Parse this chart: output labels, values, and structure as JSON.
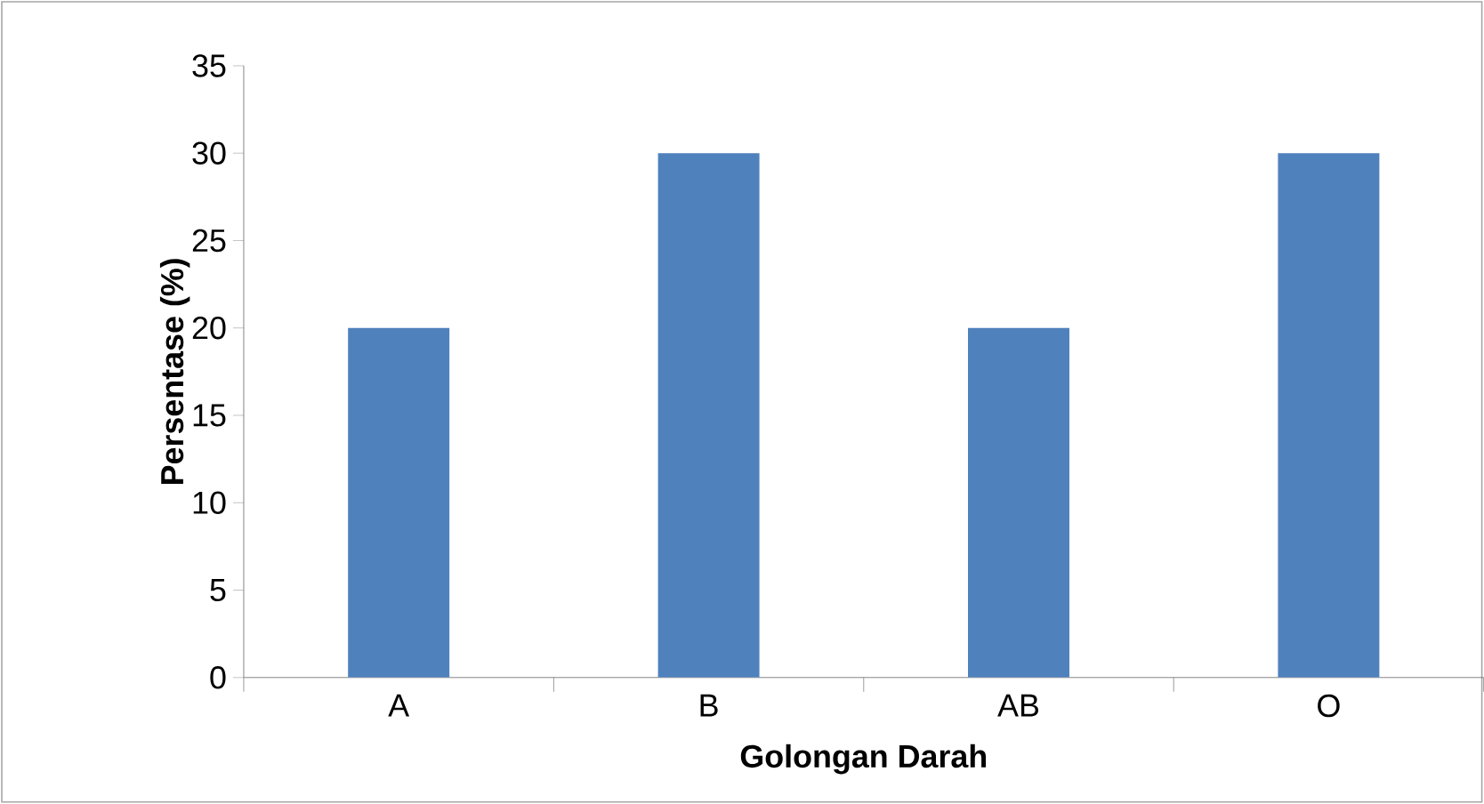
{
  "chart_data": {
    "type": "bar",
    "xlabel": "Golongan Darah",
    "ylabel": "Persentase (%)",
    "categories": [
      "A",
      "B",
      "AB",
      "O"
    ],
    "values": [
      20,
      30,
      20,
      30
    ],
    "color": "#4f81bd",
    "ylim": [
      0,
      35
    ],
    "yticks": [
      0,
      5,
      10,
      15,
      20,
      25,
      30,
      35
    ],
    "grid": false
  }
}
